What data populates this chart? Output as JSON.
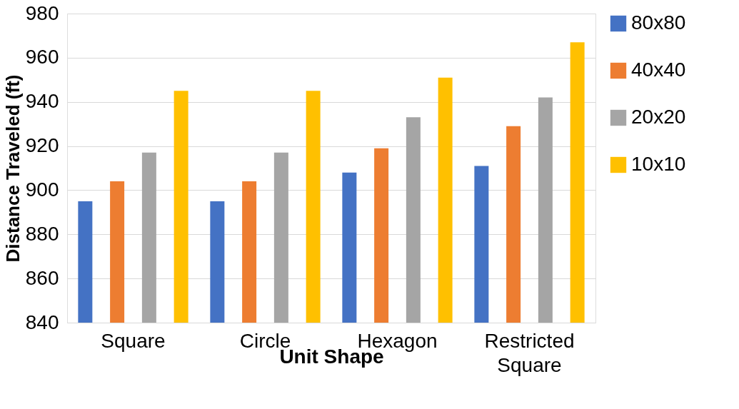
{
  "chart_data": {
    "type": "bar",
    "xlabel": "Unit Shape",
    "ylabel": "Distance Traveled (ft)",
    "categories": [
      "Square",
      "Circle",
      "Hexagon",
      "Restricted Square"
    ],
    "series": [
      {
        "name": "80x80",
        "color": "#4472c4",
        "values": [
          895,
          895,
          908,
          911
        ]
      },
      {
        "name": "40x40",
        "color": "#ed7d31",
        "values": [
          904,
          904,
          919,
          929
        ]
      },
      {
        "name": "20x20",
        "color": "#a5a5a5",
        "values": [
          917,
          917,
          933,
          942
        ]
      },
      {
        "name": "10x10",
        "color": "#ffc000",
        "values": [
          945,
          945,
          951,
          967
        ]
      }
    ],
    "ylim": [
      840,
      980
    ],
    "yticks": [
      840,
      860,
      880,
      900,
      920,
      940,
      960,
      980
    ],
    "grid": "y",
    "legend": "right"
  }
}
